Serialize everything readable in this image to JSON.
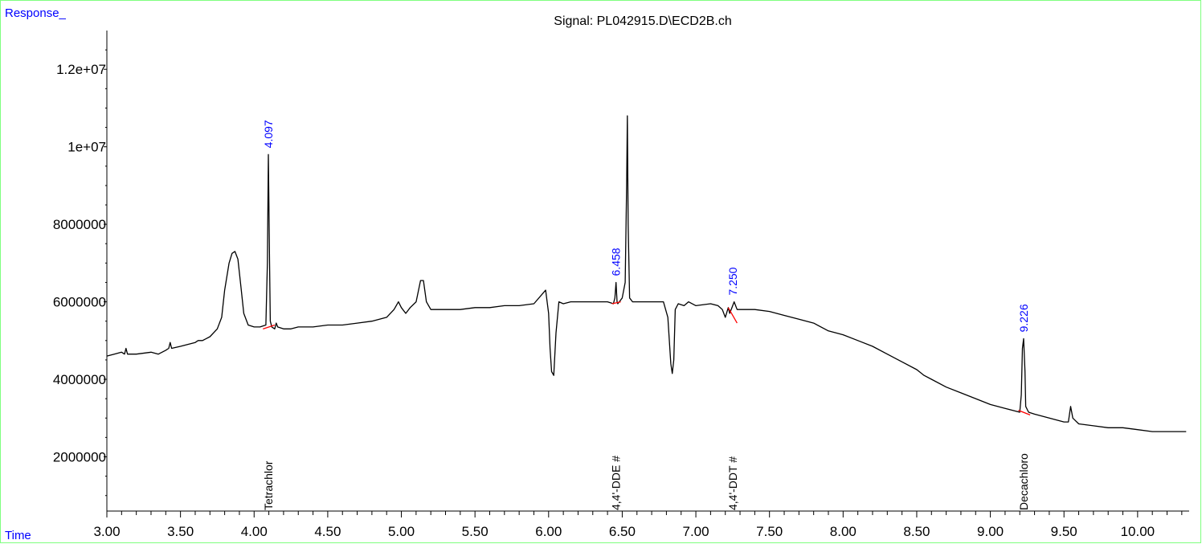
{
  "chart_data": {
    "type": "line",
    "title": "Signal: PL042915.D\\ECD2B.ch",
    "ylabel": "Response_",
    "xlabel": "Time",
    "xlim": [
      3.0,
      10.35
    ],
    "ylim": [
      600000,
      13000000
    ],
    "x_ticks": [
      "3.00",
      "3.50",
      "4.00",
      "4.50",
      "5.00",
      "5.50",
      "6.00",
      "6.50",
      "7.00",
      "7.50",
      "8.00",
      "8.50",
      "9.00",
      "9.50",
      "10.00"
    ],
    "y_ticks": [
      {
        "value": 2000000,
        "label": "2000000"
      },
      {
        "value": 4000000,
        "label": "4000000"
      },
      {
        "value": 6000000,
        "label": "6000000"
      },
      {
        "value": 8000000,
        "label": "8000000"
      },
      {
        "value": 10000000,
        "label": "1e+07"
      },
      {
        "value": 12000000,
        "label": "1.2e+07"
      }
    ],
    "series": [
      {
        "color": "#000000",
        "x": [
          3.0,
          3.05,
          3.1,
          3.12,
          3.13,
          3.14,
          3.2,
          3.3,
          3.35,
          3.4,
          3.42,
          3.43,
          3.44,
          3.5,
          3.55,
          3.6,
          3.62,
          3.65,
          3.7,
          3.75,
          3.78,
          3.8,
          3.83,
          3.85,
          3.87,
          3.89,
          3.91,
          3.93,
          3.96,
          4.0,
          4.04,
          4.08,
          4.09,
          4.097,
          4.105,
          4.11,
          4.12,
          4.14,
          4.15,
          4.16,
          4.2,
          4.25,
          4.3,
          4.4,
          4.5,
          4.6,
          4.7,
          4.8,
          4.9,
          4.95,
          4.98,
          5.0,
          5.03,
          5.06,
          5.1,
          5.13,
          5.15,
          5.17,
          5.2,
          5.3,
          5.4,
          5.5,
          5.6,
          5.7,
          5.8,
          5.9,
          5.98,
          6.0,
          6.01,
          6.02,
          6.035,
          6.05,
          6.07,
          6.1,
          6.15,
          6.2,
          6.3,
          6.4,
          6.44,
          6.45,
          6.458,
          6.465,
          6.47,
          6.48,
          6.5,
          6.52,
          6.53,
          6.535,
          6.54,
          6.55,
          6.57,
          6.6,
          6.7,
          6.78,
          6.81,
          6.83,
          6.84,
          6.85,
          6.86,
          6.88,
          6.92,
          6.95,
          7.0,
          7.1,
          7.15,
          7.18,
          7.2,
          7.22,
          7.23,
          7.25,
          7.26,
          7.28,
          7.3,
          7.4,
          7.5,
          7.6,
          7.7,
          7.8,
          7.9,
          8.0,
          8.1,
          8.2,
          8.3,
          8.4,
          8.5,
          8.55,
          8.6,
          8.7,
          8.8,
          8.9,
          9.0,
          9.1,
          9.15,
          9.2,
          9.21,
          9.218,
          9.226,
          9.235,
          9.24,
          9.26,
          9.3,
          9.4,
          9.5,
          9.53,
          9.545,
          9.56,
          9.6,
          9.7,
          9.8,
          9.9,
          10.0,
          10.1,
          10.2,
          10.3,
          10.33
        ],
        "y": [
          4600000,
          4650000,
          4700000,
          4650000,
          4800000,
          4650000,
          4650000,
          4700000,
          4650000,
          4750000,
          4800000,
          4950000,
          4800000,
          4850000,
          4900000,
          4950000,
          5000000,
          5000000,
          5100000,
          5300000,
          5600000,
          6300000,
          7000000,
          7250000,
          7300000,
          7100000,
          6400000,
          5700000,
          5400000,
          5350000,
          5350000,
          5400000,
          7000000,
          9800000,
          7000000,
          5500000,
          5350000,
          5300000,
          5450000,
          5350000,
          5300000,
          5300000,
          5350000,
          5350000,
          5400000,
          5400000,
          5450000,
          5500000,
          5600000,
          5800000,
          6000000,
          5850000,
          5700000,
          5850000,
          6000000,
          6550000,
          6550000,
          6000000,
          5800000,
          5800000,
          5800000,
          5850000,
          5850000,
          5900000,
          5900000,
          5950000,
          6300000,
          5700000,
          4800000,
          4200000,
          4100000,
          5200000,
          6000000,
          5950000,
          6000000,
          6000000,
          6000000,
          6000000,
          5950000,
          6100000,
          6500000,
          6000000,
          5950000,
          6000000,
          6100000,
          6500000,
          9000000,
          10800000,
          8000000,
          6100000,
          6000000,
          6000000,
          6000000,
          6000000,
          5600000,
          4400000,
          4150000,
          4500000,
          5800000,
          5950000,
          5900000,
          6000000,
          5900000,
          5950000,
          5900000,
          5800000,
          5600000,
          5850000,
          5700000,
          5900000,
          6000000,
          5800000,
          5800000,
          5800000,
          5750000,
          5650000,
          5550000,
          5450000,
          5250000,
          5150000,
          5000000,
          4850000,
          4650000,
          4450000,
          4250000,
          4100000,
          4000000,
          3800000,
          3650000,
          3500000,
          3350000,
          3250000,
          3200000,
          3150000,
          3600000,
          4800000,
          5050000,
          4200000,
          3300000,
          3150000,
          3100000,
          3000000,
          2900000,
          2900000,
          3300000,
          3000000,
          2850000,
          2800000,
          2750000,
          2750000,
          2700000,
          2650000,
          2650000,
          2650000,
          2650000
        ]
      }
    ],
    "baselines": [
      {
        "color": "#ff0000",
        "x": [
          4.06,
          4.14
        ],
        "y": [
          5300000,
          5400000
        ]
      },
      {
        "color": "#ff0000",
        "x": [
          6.43,
          6.49
        ],
        "y": [
          5950000,
          6000000
        ]
      },
      {
        "color": "#ff0000",
        "x": [
          7.22,
          7.28
        ],
        "y": [
          5850000,
          5450000
        ]
      },
      {
        "color": "#ff0000",
        "x": [
          9.19,
          9.27
        ],
        "y": [
          3200000,
          3080000
        ]
      }
    ],
    "peak_labels": [
      {
        "x": 4.097,
        "y": 9800000,
        "label": "4.097"
      },
      {
        "x": 6.458,
        "y": 6500000,
        "label": "6.458"
      },
      {
        "x": 7.25,
        "y": 6000000,
        "label": "7.250"
      },
      {
        "x": 9.226,
        "y": 5050000,
        "label": "9.226"
      }
    ],
    "compound_labels": [
      {
        "x": 4.097,
        "label": "Tetrachlor"
      },
      {
        "x": 6.458,
        "label": "4,4'-DDE #"
      },
      {
        "x": 7.25,
        "label": "4,4'-DDT #"
      },
      {
        "x": 9.226,
        "label": "Decachloro"
      }
    ]
  }
}
